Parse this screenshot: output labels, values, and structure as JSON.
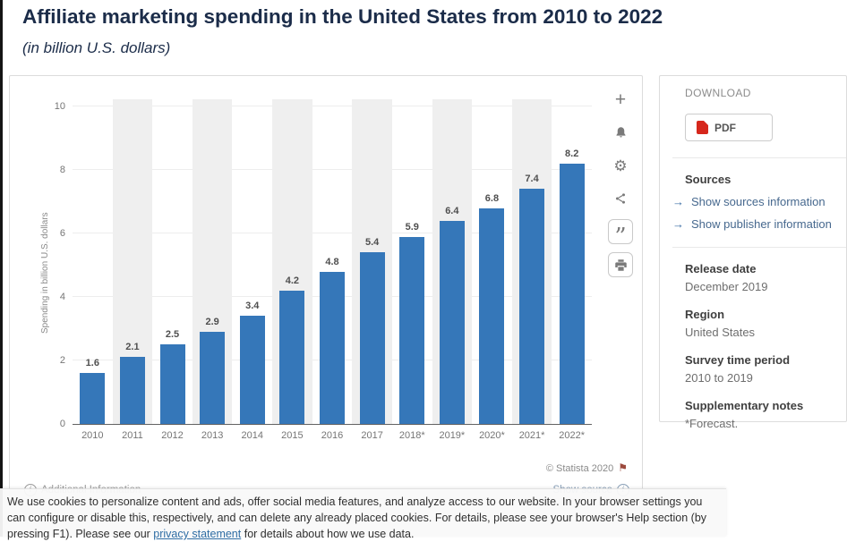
{
  "page": {
    "title": "Affiliate marketing spending in the United States from 2010 to 2022",
    "subtitle": "(in billion U.S. dollars)"
  },
  "chart_data": {
    "type": "bar",
    "title": "Affiliate marketing spending in the United States from 2010 to 2022",
    "subtitle": "(in billion U.S. dollars)",
    "categories": [
      "2010",
      "2011",
      "2012",
      "2013",
      "2014",
      "2015",
      "2016",
      "2017",
      "2018*",
      "2019*",
      "2020*",
      "2021*",
      "2022*"
    ],
    "values": [
      1.6,
      2.1,
      2.5,
      2.9,
      3.4,
      4.2,
      4.8,
      5.4,
      5.9,
      6.4,
      6.8,
      7.4,
      8.2
    ],
    "xlabel": "",
    "ylabel": "Spending in billion U.S. dollars",
    "ylim": [
      0,
      10
    ],
    "yticks": [
      0,
      2,
      4,
      6,
      8,
      10
    ],
    "bar_color": "#3577b9",
    "stripe_color": "#efefef",
    "grid": true,
    "legend": "none"
  },
  "toolbar_icons": [
    "plus-icon",
    "bell-icon",
    "gear-icon",
    "share-icon",
    "cite-quote-icon",
    "print-icon"
  ],
  "chart_footer": {
    "copyright": "© Statista 2020",
    "additional_info": "Additional Information",
    "show_source": "Show source"
  },
  "download_panel": {
    "heading": "DOWNLOAD",
    "pdf_label": "PDF",
    "sources_title": "Sources",
    "source_links": [
      "Show sources information",
      "Show publisher information"
    ],
    "release_title": "Release date",
    "release_value": "December 2019",
    "region_title": "Region",
    "region_value": "United States",
    "survey_title": "Survey time period",
    "survey_value": "2010 to 2019",
    "notes_title": "Supplementary notes",
    "notes_value": "*Forecast."
  },
  "cookie_banner": {
    "text_before_link": "We use cookies to personalize content and ads, offer social media features, and analyze access to our website. In your browser settings you can configure or disable this, respectively, and can delete any already placed cookies. For details, please see your browser's Help section (by pressing F1). Please see our ",
    "link_label": "privacy statement",
    "text_after_link": " for details about how we use data."
  }
}
